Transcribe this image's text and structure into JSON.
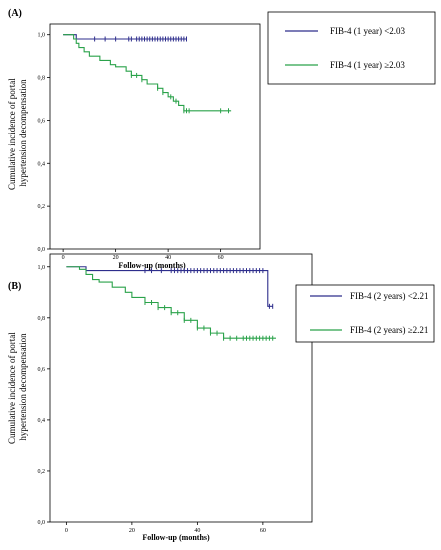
{
  "chart_data": [
    {
      "panel": "(A)",
      "type": "line",
      "ylabel": "Cumulative incidence of portal hypertension decompensation",
      "xlabel": "Follow-up (months)",
      "xlim": [
        -5,
        75
      ],
      "ylim": [
        0,
        1.05
      ],
      "xticks": [
        0,
        20,
        40,
        60
      ],
      "yticks": [
        "0,0",
        "0,2",
        "0,4",
        "0,6",
        "0,8",
        "1,0"
      ],
      "legend_position": "top-right, outside plot",
      "series": [
        {
          "name": "FIB-4 (1 year) <2.03",
          "color": "#2e2e8c",
          "x": [
            0,
            5,
            47
          ],
          "y": [
            1.0,
            0.98,
            0.98
          ],
          "censored_x": [
            12,
            16,
            20,
            25,
            26,
            28,
            29,
            30,
            31,
            32,
            33,
            34,
            35,
            36,
            37,
            38,
            39,
            40,
            41,
            42,
            43,
            44,
            45,
            46,
            47
          ]
        },
        {
          "name": "FIB-4 (1 year) ≥2.03",
          "color": "#2aa24a",
          "x": [
            0,
            4,
            5,
            6,
            8,
            10,
            14,
            18,
            20,
            24,
            26,
            30,
            32,
            36,
            38,
            40,
            42,
            44,
            46,
            48,
            64
          ],
          "y": [
            1.0,
            0.98,
            0.96,
            0.94,
            0.92,
            0.9,
            0.88,
            0.86,
            0.85,
            0.83,
            0.81,
            0.79,
            0.77,
            0.75,
            0.73,
            0.71,
            0.69,
            0.67,
            0.645,
            0.645,
            0.645
          ],
          "censored_x": [
            26,
            28,
            30,
            36,
            38,
            41,
            43,
            46,
            47,
            48,
            60,
            63
          ]
        }
      ]
    },
    {
      "panel": "(B)",
      "type": "line",
      "ylabel": "Cumulative incidence of portal hypertension decompensation",
      "xlabel": "Follow-up (months)",
      "xlim": [
        -5,
        75
      ],
      "ylim": [
        0,
        1.05
      ],
      "xticks": [
        0,
        20,
        40,
        60
      ],
      "yticks": [
        "0,0",
        "0,2",
        "0,4",
        "0,6",
        "0,8",
        "1,0"
      ],
      "legend_position": "top-right, outside plot",
      "series": [
        {
          "name": "FIB-4 (2 years) <2.21",
          "color": "#2e2e8c",
          "x": [
            0,
            6,
            61,
            61.5,
            63
          ],
          "y": [
            1.0,
            0.985,
            0.985,
            0.845,
            0.845
          ],
          "censored_x": [
            24,
            26,
            29,
            32,
            33,
            34,
            35,
            36,
            37,
            38,
            39,
            40,
            41,
            42,
            43,
            44,
            45,
            46,
            47,
            48,
            49,
            50,
            51,
            52,
            53,
            54,
            55,
            56,
            57,
            58,
            59,
            60,
            62,
            63
          ]
        },
        {
          "name": "FIB-4 (2 years) ≥2.21",
          "color": "#2aa24a",
          "x": [
            0,
            4,
            6,
            8,
            10,
            14,
            18,
            20,
            24,
            28,
            32,
            36,
            40,
            44,
            48,
            64
          ],
          "y": [
            1.0,
            0.99,
            0.97,
            0.95,
            0.94,
            0.92,
            0.9,
            0.88,
            0.86,
            0.84,
            0.82,
            0.79,
            0.76,
            0.74,
            0.72,
            0.72
          ],
          "censored_x": [
            24,
            26,
            28,
            30,
            32,
            34,
            36,
            38,
            40,
            42,
            44,
            46,
            48,
            50,
            52,
            54,
            55,
            56,
            57,
            58,
            59,
            60,
            61,
            62,
            63
          ]
        }
      ]
    }
  ]
}
